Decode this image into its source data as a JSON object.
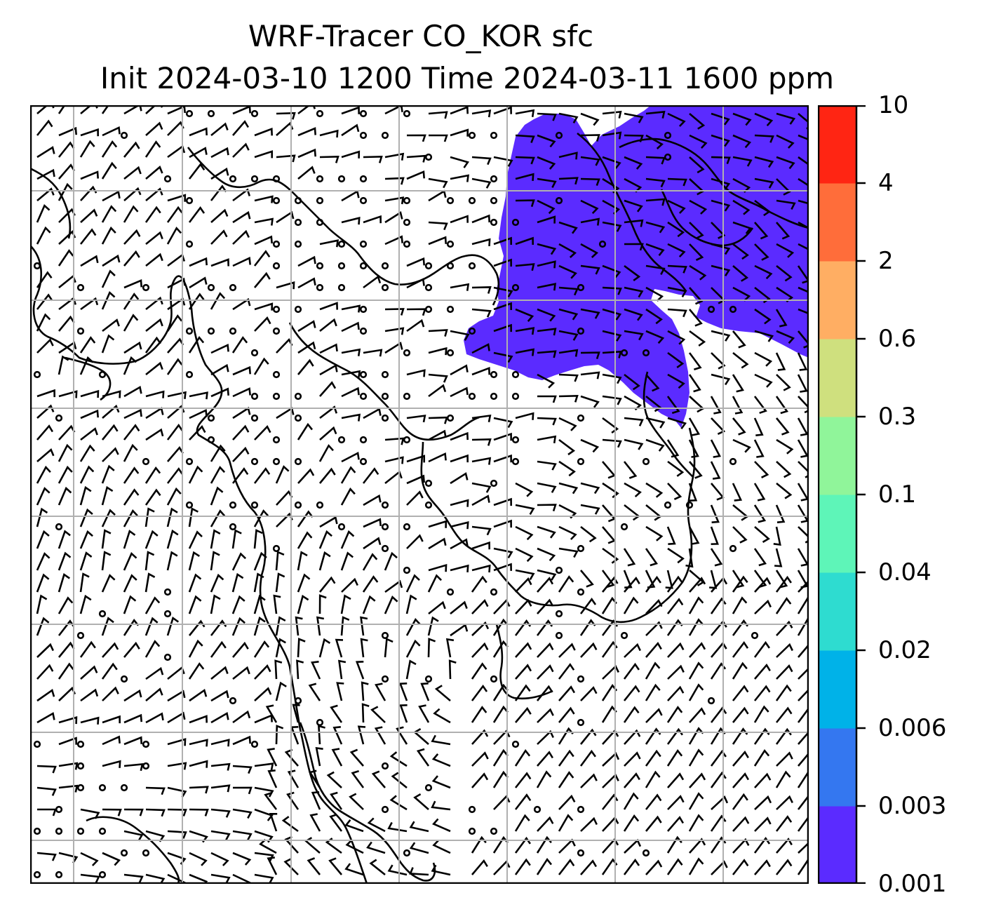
{
  "title": {
    "line1": "WRF-Tracer CO_KOR sfc",
    "line2": "Init 2024-03-10 1200 Time 2024-03-11 1600 ppm"
  },
  "map": {
    "gridlines": "on",
    "grid_color": "#b0b0b0",
    "plume_color": "#5b2bff",
    "barb_color": "#000000"
  },
  "colorbar": {
    "levels": [
      "0.001",
      "0.003",
      "0.006",
      "0.02",
      "0.04",
      "0.1",
      "0.3",
      "0.6",
      "2",
      "4",
      "10"
    ],
    "colors": [
      "#5b2bff",
      "#3477f0",
      "#00b2e8",
      "#2edcd0",
      "#5ef5b8",
      "#90f59a",
      "#cfe07e",
      "#ffae63",
      "#ff6d3a",
      "#ff2513"
    ]
  }
}
